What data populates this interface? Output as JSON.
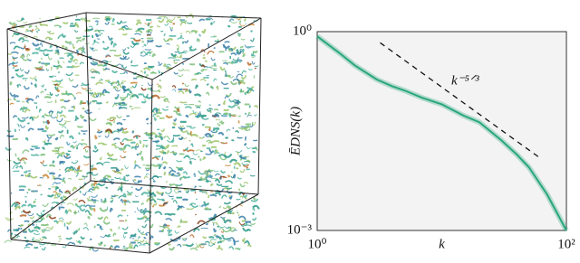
{
  "chart_data": {
    "type": "line",
    "xlabel": "k",
    "ylabel": "ĒDNS(k)",
    "log_x": true,
    "log_y": true,
    "grid": true,
    "xlim": [
      1,
      100
    ],
    "ylim": [
      0.001,
      1
    ],
    "xticks": [
      {
        "value": 1,
        "label": "10⁰"
      },
      {
        "value": 100,
        "label": "10²"
      }
    ],
    "yticks": [
      {
        "value": 0.001,
        "label": "10⁻³"
      },
      {
        "value": 1,
        "label": "10⁰"
      }
    ],
    "series": [
      {
        "color": "#2aa67e",
        "x": [
          1,
          1.5,
          2,
          3,
          4,
          5,
          7,
          10,
          15,
          20,
          30,
          40,
          50,
          70,
          100
        ],
        "values": [
          0.85,
          0.48,
          0.31,
          0.19,
          0.15,
          0.13,
          0.1,
          0.08,
          0.054,
          0.043,
          0.023,
          0.014,
          0.009,
          0.0035,
          0.001
        ]
      }
    ],
    "reference": {
      "label": "k⁻⁵ᐟ³",
      "color": "#111111",
      "x": [
        3.2,
        63
      ],
      "values": [
        0.68,
        0.012
      ]
    }
  }
}
